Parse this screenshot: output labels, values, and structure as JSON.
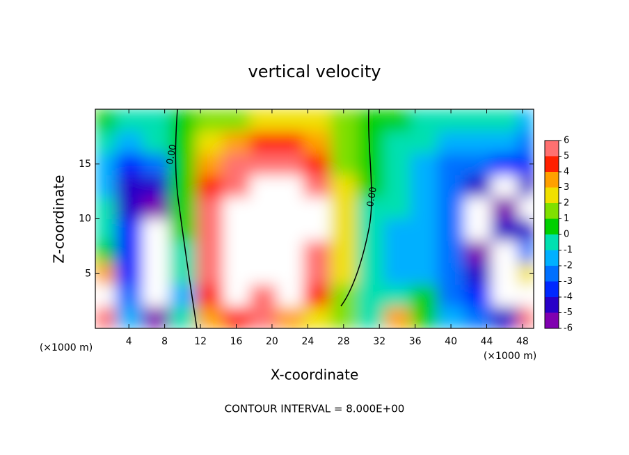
{
  "chart_data": {
    "type": "heatmap",
    "title": "vertical velocity",
    "x_label": "X-coordinate",
    "y_label": "Z-coordinate",
    "x_unit": "(×1000 m)",
    "footer": "CONTOUR INTERVAL = 8.000E+00",
    "annotations": [
      "0.00",
      "0.00"
    ],
    "x": [
      1,
      4,
      7,
      10,
      13,
      16,
      19,
      22,
      25,
      28,
      31,
      34,
      37,
      40,
      43,
      46,
      49
    ],
    "y": [
      1,
      3,
      5,
      7,
      9,
      11,
      13,
      15,
      17,
      19
    ],
    "z": [
      [
        5,
        -2,
        -6,
        -1,
        3,
        4,
        5,
        3,
        2,
        1,
        -1,
        3,
        0,
        -2,
        -3,
        -5,
        6
      ],
      [
        7,
        -3,
        -8,
        -2,
        4,
        7,
        6,
        7,
        4,
        1,
        -1,
        -1,
        0,
        -3,
        -4,
        -7,
        7
      ],
      [
        3,
        -4,
        -9,
        -1,
        5,
        8,
        7,
        8,
        5,
        2,
        -1,
        -2,
        -2,
        -3,
        -5,
        -8,
        2
      ],
      [
        0,
        -4,
        -9,
        -1,
        5,
        7,
        8,
        8,
        6,
        2,
        -1,
        -2,
        -2,
        -3,
        -6,
        -7,
        -3
      ],
      [
        -1,
        -4,
        -8,
        0,
        5,
        8,
        8,
        8,
        7,
        2,
        -1,
        -2,
        -2,
        -3,
        -8,
        -5,
        -5
      ],
      [
        -1,
        -5,
        -6,
        0,
        5,
        7,
        8,
        8,
        7,
        2,
        -1,
        -1,
        -2,
        -3,
        -7,
        -6,
        -7
      ],
      [
        -2,
        -5,
        -5,
        0,
        4,
        6,
        8,
        7,
        6,
        2,
        0,
        -1,
        -2,
        -3,
        -5,
        -7,
        -5
      ],
      [
        -2,
        -4,
        -3,
        0,
        3,
        5,
        6,
        5,
        4,
        1,
        0,
        -1,
        -2,
        -3,
        -3,
        -4,
        -4
      ],
      [
        -1,
        -2,
        -1,
        0,
        2,
        3,
        4,
        4,
        3,
        1,
        0,
        -1,
        -1,
        -2,
        -2,
        -2,
        -3
      ],
      [
        0,
        -1,
        -1,
        0,
        1,
        1,
        2,
        2,
        2,
        1,
        0,
        0,
        -1,
        -1,
        -1,
        -1,
        -2
      ]
    ],
    "xlim": [
      0.25,
      49.25
    ],
    "ylim": [
      0,
      20
    ],
    "xticks": [
      4,
      8,
      12,
      16,
      20,
      24,
      28,
      32,
      36,
      40,
      44,
      48
    ],
    "yticks": [
      5,
      10,
      15
    ],
    "colorbar_ticks": [
      -6,
      -5,
      -4,
      -3,
      -2,
      -1,
      0,
      1,
      2,
      3,
      4,
      5,
      6
    ],
    "colors": [
      "#8000b0",
      "#2800c8",
      "#0028ff",
      "#0070ff",
      "#00b0ff",
      "#00e0b0",
      "#00d000",
      "#80e000",
      "#f0e000",
      "#ffa000",
      "#ff2000",
      "#ff7070"
    ],
    "out_of_range_color": "#ffffff"
  }
}
